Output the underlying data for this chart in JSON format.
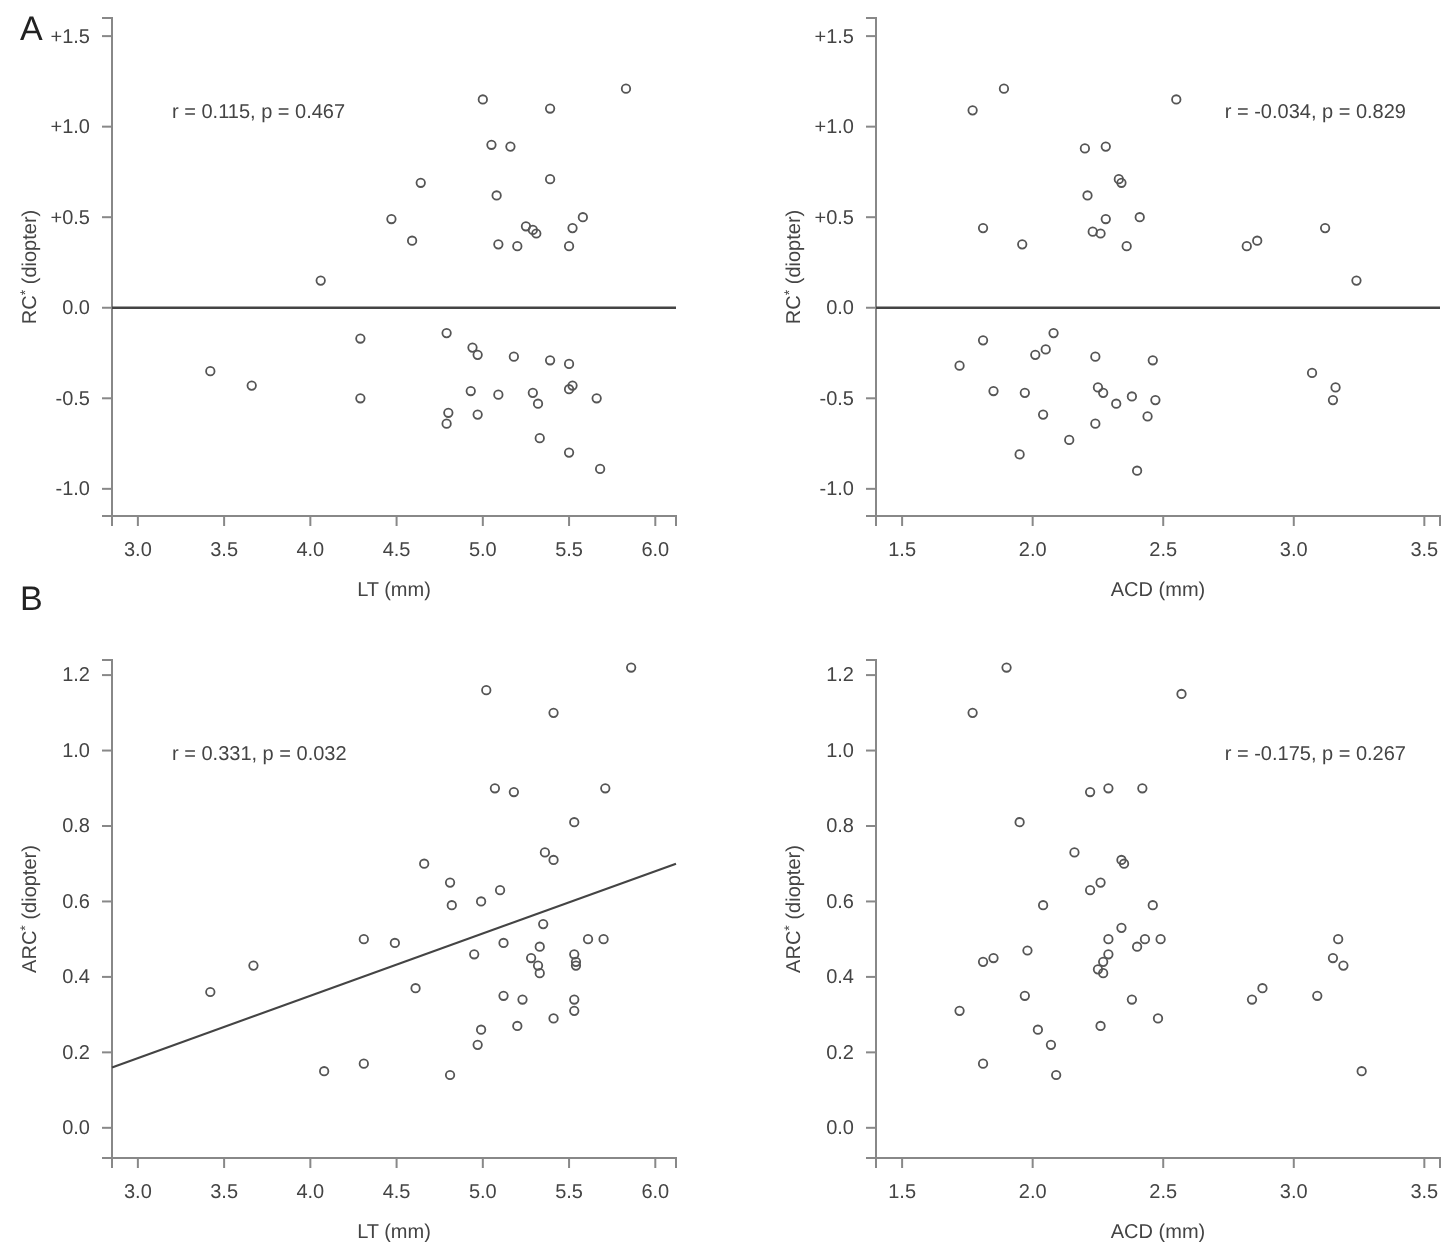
{
  "chart_data": [
    {
      "type": "scatter",
      "title": "A",
      "xlabel": "LT (mm)",
      "ylabel": "RC$^{*}$ (diopter)",
      "annotations": [
        "r = 0.115, p = 0.467"
      ],
      "marker": "circle",
      "grid": false,
      "xlim": [
        2.85,
        6.12
      ],
      "xticks": [
        {
          "value": 3,
          "label": "3.0"
        },
        3.5,
        {
          "value": 4,
          "label": "4.0"
        },
        4.5,
        {
          "value": 5,
          "label": "5.0"
        },
        5.5,
        {
          "value": 6,
          "label": "6.0"
        }
      ],
      "ylim": [
        -1.15,
        1.6
      ],
      "yticks": [
        {
          "value": -1,
          "label": "-1.0"
        },
        -0.5,
        {
          "value": 0,
          "label": "0.0"
        },
        {
          "value": 0.5,
          "label": "+0.5"
        },
        {
          "value": 1,
          "label": "+1.0"
        },
        {
          "value": 1.5,
          "label": "+1.5"
        }
      ],
      "ref_lines": [
        {
          "axis": "y",
          "value": 0,
          "color": "#444444"
        }
      ],
      "series": [
        {
          "color": "#555555",
          "x": [
            5.83,
            5.0,
            5.39,
            5.05,
            5.16,
            4.64,
            5.39,
            5.08,
            4.47,
            5.58,
            5.25,
            5.29,
            5.31,
            5.52,
            4.59,
            5.09,
            5.2,
            5.5,
            4.06,
            4.29,
            4.79,
            4.94,
            4.97,
            5.18,
            5.39,
            5.5,
            3.42,
            3.66,
            4.93,
            5.09,
            5.29,
            5.5,
            5.52,
            4.29,
            5.66,
            5.32,
            4.8,
            4.79,
            4.97,
            5.33,
            5.5,
            5.68
          ],
          "values": [
            1.21,
            1.15,
            1.1,
            0.9,
            0.89,
            0.69,
            0.71,
            0.62,
            0.49,
            0.5,
            0.45,
            0.43,
            0.41,
            0.44,
            0.37,
            0.35,
            0.34,
            0.34,
            0.15,
            -0.17,
            -0.14,
            -0.22,
            -0.26,
            -0.27,
            -0.29,
            -0.31,
            -0.35,
            -0.43,
            -0.46,
            -0.48,
            -0.47,
            -0.45,
            -0.43,
            -0.5,
            -0.5,
            -0.53,
            -0.58,
            -0.64,
            -0.59,
            -0.72,
            -0.8,
            -0.89
          ]
        }
      ]
    },
    {
      "type": "scatter",
      "xlabel": "ACD (mm)",
      "ylabel": "RC$^{*}$ (diopter)",
      "annotations": [
        "r = -0.034, p = 0.829"
      ],
      "marker": "circle",
      "grid": false,
      "xlim": [
        1.4,
        3.56
      ],
      "xticks": [
        1.5,
        {
          "value": 2,
          "label": "2.0"
        },
        2.5,
        {
          "value": 3,
          "label": "3.0"
        },
        3.5
      ],
      "ylim": [
        -1.15,
        1.6
      ],
      "yticks": [
        {
          "value": -1,
          "label": "-1.0"
        },
        -0.5,
        {
          "value": 0,
          "label": "0.0"
        },
        {
          "value": 0.5,
          "label": "+0.5"
        },
        {
          "value": 1,
          "label": "+1.0"
        },
        {
          "value": 1.5,
          "label": "+1.5"
        }
      ],
      "ref_lines": [
        {
          "axis": "y",
          "value": 0,
          "color": "#444444"
        }
      ],
      "series": [
        {
          "color": "#555555",
          "x": [
            1.89,
            1.77,
            2.55,
            2.2,
            2.28,
            2.33,
            2.34,
            2.21,
            2.28,
            2.41,
            1.81,
            1.96,
            2.23,
            2.26,
            2.36,
            2.82,
            2.86,
            3.12,
            3.24,
            1.72,
            1.81,
            1.85,
            1.95,
            1.97,
            2.01,
            2.04,
            2.05,
            2.08,
            2.14,
            2.24,
            2.25,
            2.27,
            2.24,
            2.32,
            2.38,
            2.4,
            2.44,
            2.46,
            2.47,
            3.07,
            3.15,
            3.16
          ],
          "values": [
            1.21,
            1.09,
            1.15,
            0.88,
            0.89,
            0.71,
            0.69,
            0.62,
            0.49,
            0.5,
            0.44,
            0.35,
            0.42,
            0.41,
            0.34,
            0.34,
            0.37,
            0.44,
            0.15,
            -0.32,
            -0.18,
            -0.46,
            -0.81,
            -0.47,
            -0.26,
            -0.59,
            -0.23,
            -0.14,
            -0.73,
            -0.27,
            -0.44,
            -0.47,
            -0.64,
            -0.53,
            -0.49,
            -0.9,
            -0.6,
            -0.29,
            -0.51,
            -0.36,
            -0.51,
            -0.44
          ]
        }
      ]
    },
    {
      "type": "scatter",
      "title": "B",
      "xlabel": "LT (mm)",
      "ylabel": "ARC$^{*}$ (diopter)",
      "annotations": [
        "r = 0.331, p = 0.032"
      ],
      "grid": false,
      "xlim": [
        2.85,
        6.12
      ],
      "xticks": [
        {
          "value": 3,
          "label": "3.0"
        },
        3.5,
        {
          "value": 4,
          "label": "4.0"
        },
        4.5,
        {
          "value": 5,
          "label": "5.0"
        },
        5.5,
        {
          "value": 6,
          "label": "6.0"
        }
      ],
      "ylim": [
        -0.08,
        1.24
      ],
      "yticks": [
        {
          "value": 0,
          "label": "0.0"
        },
        0.2,
        0.4,
        0.6,
        0.8,
        {
          "value": 1,
          "label": "1.0"
        },
        1.2
      ],
      "series": [
        {
          "color": "#555555",
          "marker": "circle",
          "x": [
            5.86,
            5.02,
            5.41,
            5.07,
            5.18,
            5.71,
            5.53,
            5.36,
            5.41,
            4.66,
            4.81,
            5.1,
            4.99,
            4.82,
            5.35,
            4.31,
            4.49,
            5.12,
            5.61,
            5.7,
            5.33,
            4.95,
            5.28,
            5.53,
            5.54,
            5.54,
            5.32,
            5.33,
            3.67,
            3.42,
            4.61,
            5.12,
            5.23,
            5.53,
            5.53,
            5.41,
            5.2,
            4.99,
            4.97,
            4.08,
            4.31,
            4.81
          ],
          "values": [
            1.22,
            1.16,
            1.1,
            0.9,
            0.89,
            0.9,
            0.81,
            0.73,
            0.71,
            0.7,
            0.65,
            0.63,
            0.6,
            0.59,
            0.54,
            0.5,
            0.49,
            0.49,
            0.5,
            0.5,
            0.48,
            0.46,
            0.45,
            0.46,
            0.44,
            0.43,
            0.43,
            0.41,
            0.43,
            0.36,
            0.37,
            0.35,
            0.34,
            0.34,
            0.31,
            0.29,
            0.27,
            0.26,
            0.22,
            0.15,
            0.17,
            0.14
          ]
        },
        {
          "type": "line",
          "marker": "none",
          "color": "#444444",
          "x": [
            2.85,
            6.12
          ],
          "values": [
            0.16,
            0.7
          ]
        }
      ]
    },
    {
      "type": "scatter",
      "xlabel": "ACD (mm)",
      "ylabel": "ARC$^{*}$ (diopter)",
      "annotations": [
        "r = -0.175, p = 0.267"
      ],
      "marker": "circle",
      "grid": false,
      "xlim": [
        1.4,
        3.56
      ],
      "xticks": [
        1.5,
        {
          "value": 2,
          "label": "2.0"
        },
        2.5,
        {
          "value": 3,
          "label": "3.0"
        },
        3.5
      ],
      "ylim": [
        -0.08,
        1.24
      ],
      "yticks": [
        {
          "value": 0,
          "label": "0.0"
        },
        0.2,
        0.4,
        0.6,
        0.8,
        {
          "value": 1,
          "label": "1.0"
        },
        1.2
      ],
      "series": [
        {
          "color": "#555555",
          "x": [
            1.9,
            1.77,
            2.57,
            2.22,
            2.29,
            2.42,
            1.95,
            2.16,
            2.34,
            2.35,
            2.26,
            2.22,
            2.04,
            2.46,
            2.34,
            2.43,
            2.49,
            2.29,
            2.4,
            1.98,
            2.29,
            1.85,
            1.81,
            2.25,
            2.27,
            2.27,
            1.72,
            1.97,
            2.38,
            2.84,
            2.88,
            3.09,
            3.15,
            3.17,
            3.19,
            2.02,
            2.26,
            2.48,
            2.07,
            1.81,
            2.09,
            3.26
          ],
          "values": [
            1.22,
            1.1,
            1.15,
            0.89,
            0.9,
            0.9,
            0.81,
            0.73,
            0.71,
            0.7,
            0.65,
            0.63,
            0.59,
            0.59,
            0.53,
            0.5,
            0.5,
            0.5,
            0.48,
            0.47,
            0.46,
            0.45,
            0.44,
            0.42,
            0.44,
            0.41,
            0.31,
            0.35,
            0.34,
            0.34,
            0.37,
            0.35,
            0.45,
            0.5,
            0.43,
            0.26,
            0.27,
            0.29,
            0.22,
            0.17,
            0.14,
            0.15
          ]
        }
      ]
    }
  ]
}
